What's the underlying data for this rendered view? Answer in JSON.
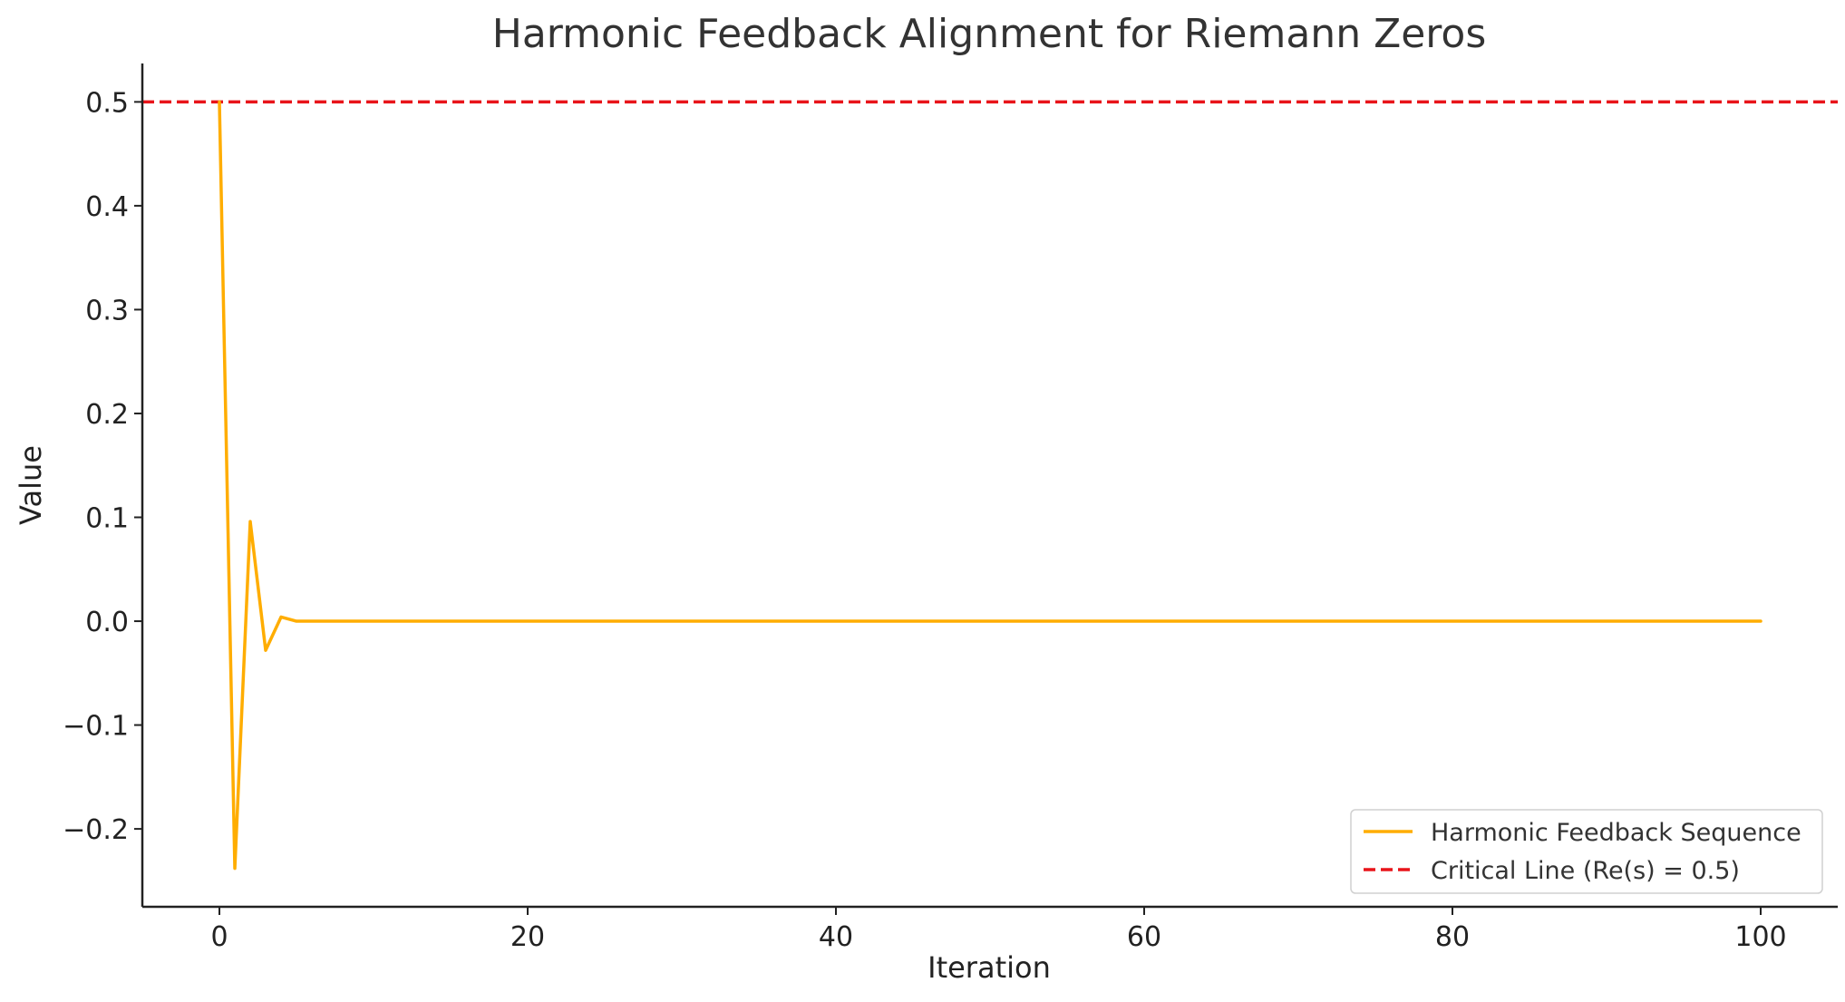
{
  "colors": {
    "series": "#ffad00",
    "critical_line": "#e8141a",
    "axis": "#222222",
    "text": "#222222",
    "background": "#ffffff"
  },
  "chart_data": {
    "type": "line",
    "title": "Harmonic Feedback Alignment for Riemann Zeros",
    "xlabel": "Iteration",
    "ylabel": "Value",
    "xlim": [
      -5,
      105
    ],
    "ylim": [
      -0.275,
      0.537
    ],
    "xticks": [
      0,
      20,
      40,
      60,
      80,
      100
    ],
    "xtick_labels": [
      "0",
      "20",
      "40",
      "60",
      "80",
      "100"
    ],
    "yticks": [
      -0.2,
      -0.1,
      0.0,
      0.1,
      0.2,
      0.3,
      0.4,
      0.5
    ],
    "ytick_labels": [
      "−0.2",
      "−0.1",
      "0.0",
      "0.1",
      "0.2",
      "0.3",
      "0.4",
      "0.5"
    ],
    "grid": false,
    "legend_position": "lower-right",
    "series": [
      {
        "name": "Harmonic Feedback Sequence",
        "style": "solid",
        "x": [
          0,
          1,
          2,
          3,
          4,
          5,
          100
        ],
        "y": [
          0.5,
          -0.238,
          0.096,
          -0.028,
          0.004,
          0.0,
          0.0
        ]
      }
    ],
    "reference_lines": [
      {
        "name": "Critical Line (Re(s) = 0.5)",
        "orientation": "horizontal",
        "y": 0.5,
        "style": "dashed"
      }
    ]
  }
}
